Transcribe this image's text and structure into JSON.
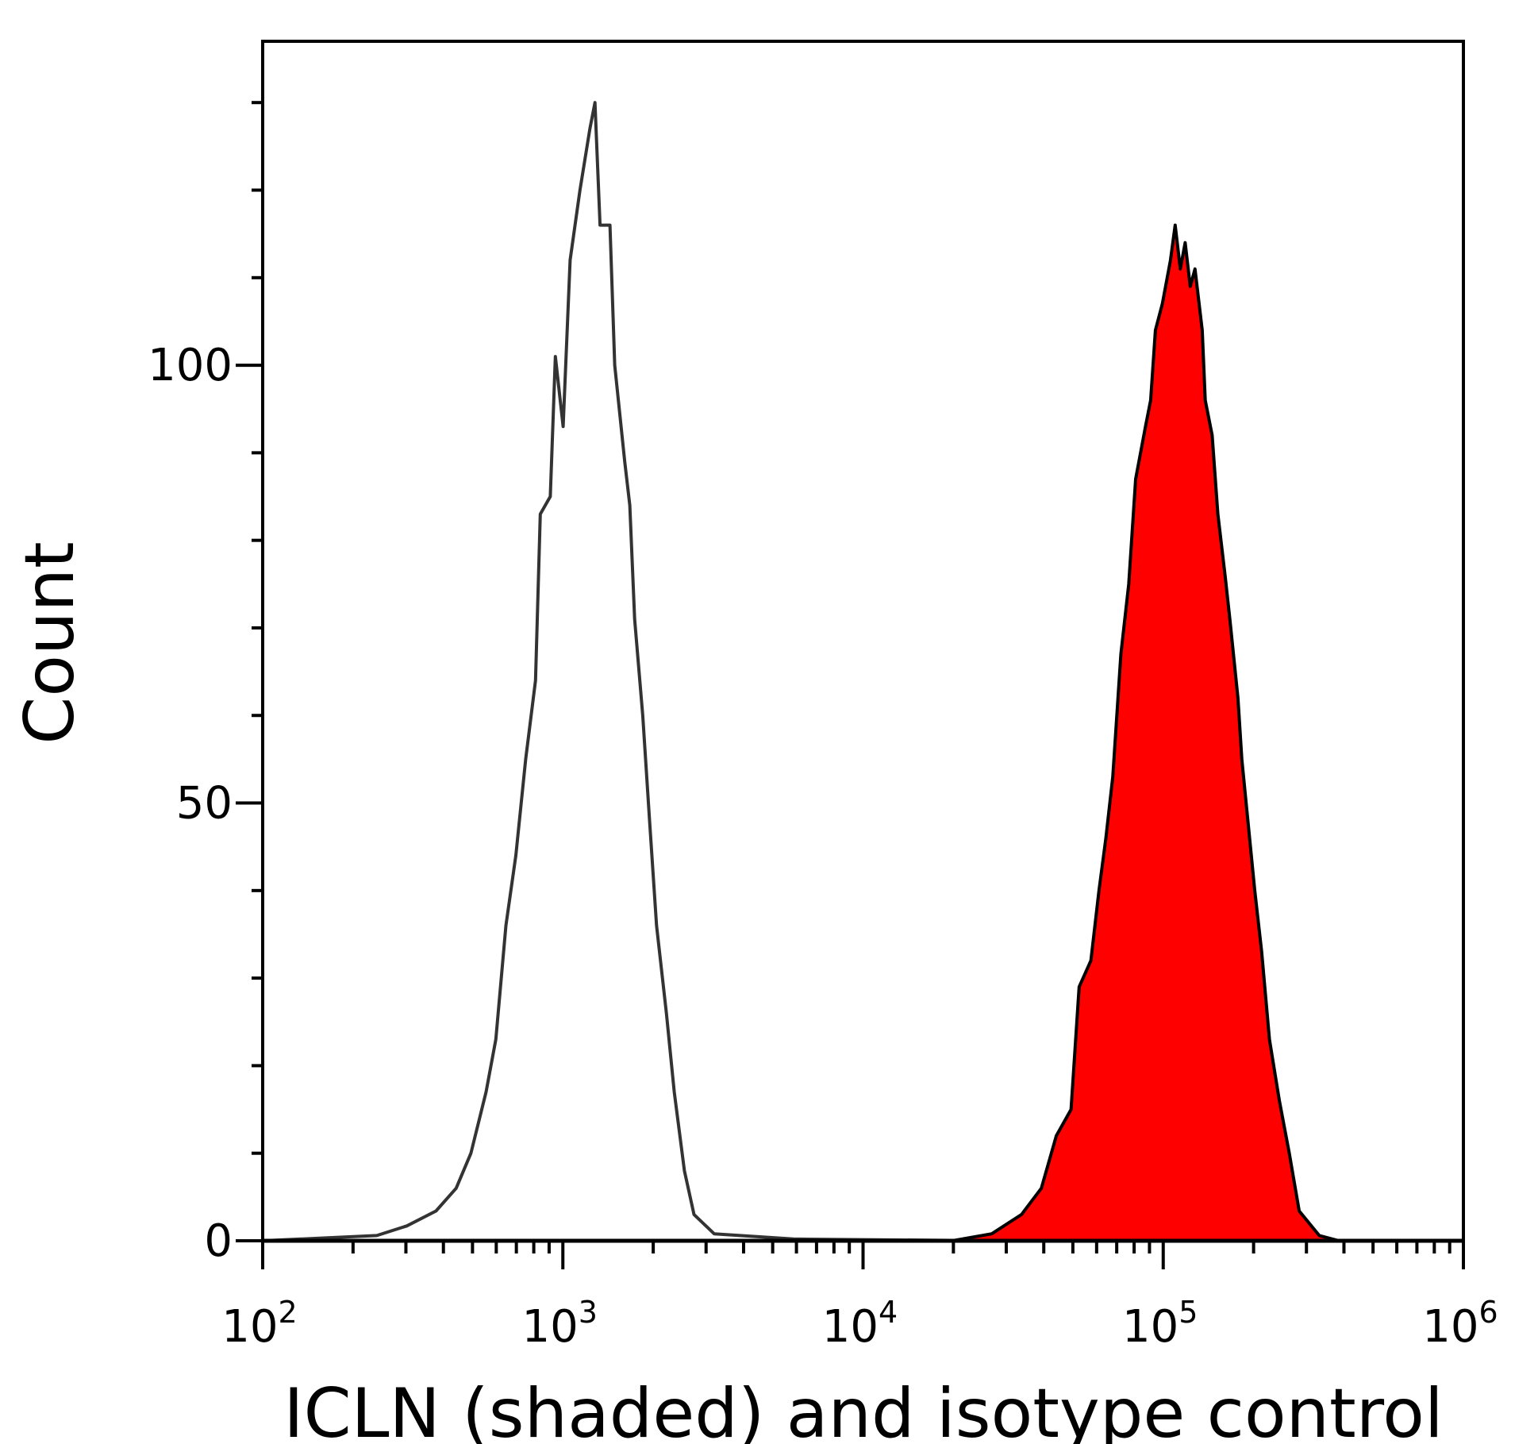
{
  "chart_data": {
    "type": "area",
    "title": "",
    "xlabel": "ICLN (shaded) and isotype control",
    "ylabel": "Count",
    "xscale": "log",
    "xlim": [
      100,
      1000000
    ],
    "ylim": [
      0,
      137
    ],
    "x_ticks": [
      {
        "base": "10",
        "exp": "2"
      },
      {
        "base": "10",
        "exp": "3"
      },
      {
        "base": "10",
        "exp": "4"
      },
      {
        "base": "10",
        "exp": "5"
      },
      {
        "base": "10",
        "exp": "6"
      }
    ],
    "y_ticks": [
      "0",
      "50",
      "100"
    ],
    "y_minor_step": 10,
    "grid": false,
    "series": [
      {
        "role": "isotype control (outline)",
        "color": "#333333",
        "fill": "none",
        "x": [
          100,
          240,
          302,
          378,
          441,
          494,
          555,
          598,
          646,
          697,
          752,
          811,
          841,
          908,
          944,
          1002,
          1057,
          1140,
          1230,
          1279,
          1330,
          1435,
          1489,
          1607,
          1671,
          1734,
          1845,
          1945,
          2051,
          2213,
          2350,
          2541,
          2735,
          3192,
          5861,
          26850
        ],
        "y": [
          0,
          0.6,
          1.7,
          3.4,
          6,
          10,
          17,
          23,
          36,
          44,
          55,
          64,
          83,
          85,
          101,
          93,
          112,
          120,
          127,
          130,
          116,
          116,
          100,
          89,
          84,
          71,
          60,
          48,
          36,
          26,
          17,
          8,
          3,
          0.8,
          0.2,
          0
        ]
      },
      {
        "role": "ICLN (shaded)",
        "color": "#000000",
        "fill": "#ff0000",
        "x": [
          19820,
          26850,
          33730,
          39260,
          44060,
          49320,
          52480,
          57410,
          61090,
          64420,
          67920,
          72280,
          76740,
          80910,
          87300,
          90780,
          94190,
          99310,
          105700,
          109600,
          114000,
          118300,
          123000,
          127600,
          134900,
          138000,
          145500,
          152100,
          160700,
          166700,
          177400,
          182800,
          191400,
          201800,
          212800,
          225900,
          243800,
          263000,
          283800,
          331100,
          385500
        ],
        "y": [
          0,
          0.8,
          3,
          6,
          12,
          15,
          29,
          32,
          40,
          46,
          53,
          67,
          75,
          87,
          93,
          96,
          104,
          107,
          112,
          116,
          111,
          114,
          109,
          111,
          104,
          96,
          92,
          83,
          76,
          71,
          62,
          55,
          48,
          40,
          33,
          23,
          16,
          10,
          3.4,
          0.6,
          0
        ]
      }
    ]
  }
}
